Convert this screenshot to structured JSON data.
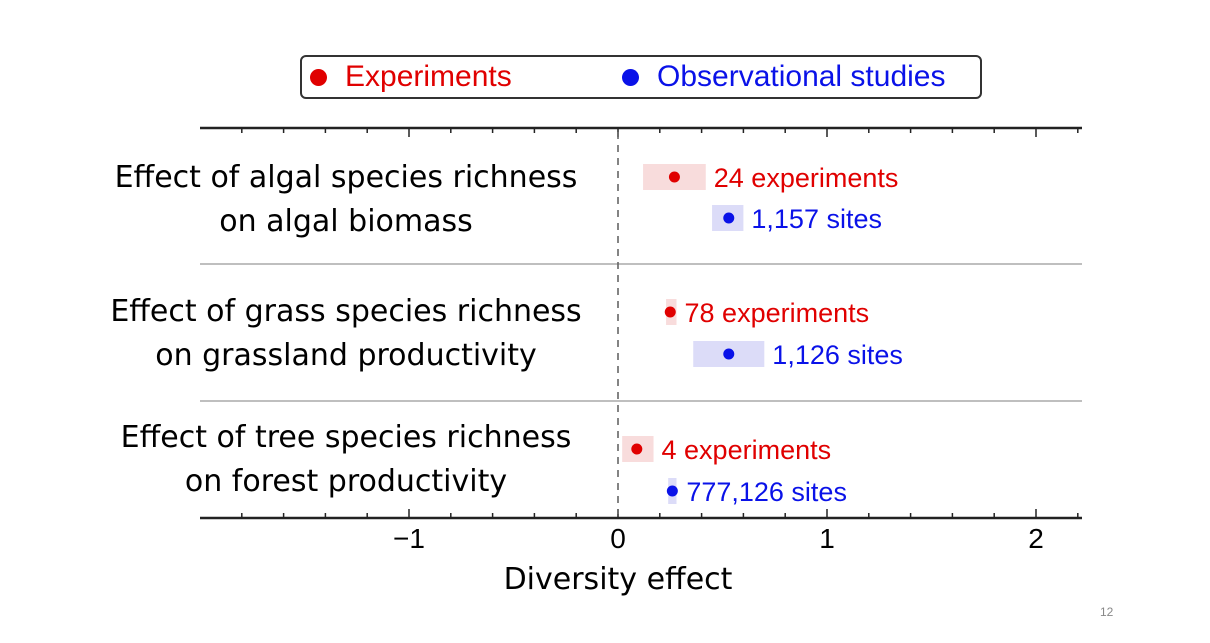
{
  "slide_number": "12",
  "colors": {
    "experiments": "#e00000",
    "observational": "#0a12e8",
    "exp_band": "#f8dcdc",
    "obs_band": "#dcdcf8"
  },
  "legend": [
    {
      "label": "Experiments",
      "color": "#e00000"
    },
    {
      "label": "Observational studies",
      "color": "#0a12e8"
    }
  ],
  "chart_data": {
    "type": "scatter",
    "orientation": "horizontal forest plot",
    "xlabel": "Diversity effect",
    "xlim": [
      -2,
      2.2
    ],
    "xticks": [
      {
        "value": -1,
        "label": "−1"
      },
      {
        "value": 0,
        "label": "0"
      },
      {
        "value": 1,
        "label": "1"
      },
      {
        "value": 2,
        "label": "2"
      }
    ],
    "reference_line": 0,
    "rows": [
      {
        "label_line1": "Effect of algal species richness",
        "label_line2": "on algal biomass",
        "points": [
          {
            "series": "Experiments",
            "x": 0.27,
            "ci": [
              0.12,
              0.42
            ],
            "annotation": "24 experiments"
          },
          {
            "series": "Observational studies",
            "x": 0.53,
            "ci": [
              0.45,
              0.6
            ],
            "annotation": "1,157 sites"
          }
        ]
      },
      {
        "label_line1": "Effect of grass species richness",
        "label_line2": "on grassland productivity",
        "points": [
          {
            "series": "Experiments",
            "x": 0.25,
            "ci": [
              0.23,
              0.28
            ],
            "annotation": "78 experiments"
          },
          {
            "series": "Observational studies",
            "x": 0.53,
            "ci": [
              0.36,
              0.7
            ],
            "annotation": "1,126 sites"
          }
        ]
      },
      {
        "label_line1": "Effect of tree species richness",
        "label_line2": "on forest productivity",
        "points": [
          {
            "series": "Experiments",
            "x": 0.09,
            "ci": [
              0.02,
              0.17
            ],
            "annotation": "4 experiments"
          },
          {
            "series": "Observational studies",
            "x": 0.26,
            "ci": [
              0.24,
              0.28
            ],
            "annotation": "777,126 sites"
          }
        ]
      }
    ]
  }
}
